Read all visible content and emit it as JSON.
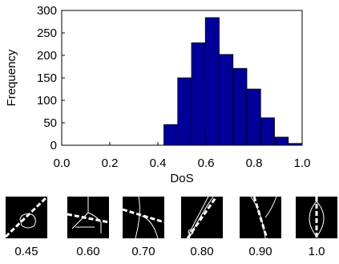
{
  "chart_data": {
    "type": "histogram",
    "xlabel": "DoS",
    "ylabel": "Frequency",
    "bins": [
      0.425,
      0.4825,
      0.54,
      0.5975,
      0.655,
      0.7125,
      0.77,
      0.8275,
      0.885,
      0.9425,
      1.0
    ],
    "values": [
      46,
      150,
      228,
      284,
      202,
      171,
      125,
      61,
      18,
      4
    ],
    "color": "#000099",
    "xlim": [
      0,
      1
    ],
    "xticks": [
      {
        "value": 0,
        "label": "0.0"
      },
      0.2,
      0.4,
      0.6,
      0.8,
      {
        "value": 1,
        "label": "1.0"
      }
    ],
    "ylim": [
      0,
      300
    ],
    "yticks": [
      0,
      50,
      100,
      150,
      200,
      250,
      300
    ]
  },
  "images": [
    "0.45",
    "0.60",
    "0.70",
    "0.80",
    "0.90",
    "1.0"
  ]
}
